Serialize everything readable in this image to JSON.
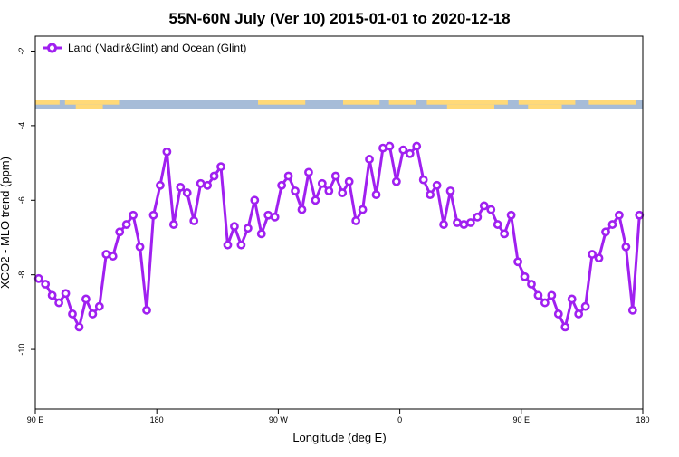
{
  "chart_data": {
    "type": "line",
    "title": "55N-60N July (Ver 10)   2015-01-01 to 2020-12-18",
    "xlabel": "Longitude (deg E)",
    "ylabel": "XCO2 - MLO trend (ppm)",
    "x_ticks": [
      {
        "value": 90,
        "label": "90 E"
      },
      {
        "value": 180,
        "label": "180"
      },
      {
        "value": 270,
        "label": "90 W"
      },
      {
        "value": 360,
        "label": "0"
      },
      {
        "value": 450,
        "label": "90 E"
      },
      {
        "value": 540,
        "label": "180"
      }
    ],
    "y_ticks": [
      {
        "value": -2,
        "label": "-2"
      },
      {
        "value": -4,
        "label": "-4"
      },
      {
        "value": -6,
        "label": "-6"
      },
      {
        "value": -8,
        "label": "-8"
      },
      {
        "value": -10,
        "label": "-10"
      }
    ],
    "xlim": [
      90,
      540
    ],
    "ylim": [
      -11.6,
      -1.6
    ],
    "grid": false,
    "legend_position": "top-left",
    "land_band": {
      "y_range": [
        -3.55,
        -3.3
      ],
      "land_color": "#ffd978",
      "ocean_color": "#a6bcd8"
    },
    "series": [
      {
        "name": "Land (Nadir&Glint) and Ocean (Glint)",
        "color": "#a020f0",
        "x": [
          92.5,
          97.5,
          102.5,
          107.5,
          112.5,
          117.5,
          122.5,
          127.5,
          132.5,
          137.5,
          142.5,
          147.5,
          152.5,
          157.5,
          162.5,
          167.5,
          172.5,
          177.5,
          182.5,
          187.5,
          192.5,
          197.5,
          202.5,
          207.5,
          212.5,
          217.5,
          222.5,
          227.5,
          232.5,
          237.5,
          242.5,
          247.5,
          252.5,
          257.5,
          262.5,
          267.5,
          272.5,
          277.5,
          282.5,
          287.5,
          292.5,
          297.5,
          302.5,
          307.5,
          312.5,
          317.5,
          322.5,
          327.5,
          332.5,
          337.5,
          342.5,
          347.5,
          352.5,
          357.5,
          362.5,
          367.5,
          372.5,
          377.5,
          382.5,
          387.5,
          392.5,
          397.5,
          402.5,
          407.5,
          412.5,
          417.5,
          422.5,
          427.5,
          432.5,
          437.5,
          442.5,
          447.5,
          452.5,
          457.5,
          462.5,
          467.5,
          472.5,
          477.5,
          482.5,
          487.5,
          492.5,
          497.5,
          502.5,
          507.5,
          512.5,
          517.5,
          522.5,
          527.5,
          532.5,
          537.5
        ],
        "y": [
          -8.1,
          -8.25,
          -8.55,
          -8.75,
          -8.5,
          -9.05,
          -9.4,
          -8.65,
          -9.05,
          -8.85,
          -7.45,
          -7.5,
          -6.85,
          -6.65,
          -6.4,
          -7.25,
          -8.95,
          -6.4,
          -5.6,
          -4.7,
          -6.65,
          -5.65,
          -5.8,
          -6.55,
          -5.55,
          -5.6,
          -5.35,
          -5.1,
          -7.2,
          -6.7,
          -7.2,
          -6.75,
          -6.0,
          -6.9,
          -6.4,
          -6.45,
          -5.6,
          -5.35,
          -5.75,
          -6.25,
          -5.25,
          -6.0,
          -5.55,
          -5.75,
          -5.35,
          -5.8,
          -5.5,
          -6.55,
          -6.25,
          -4.9,
          -5.85,
          -4.6,
          -4.55,
          -5.5,
          -4.65,
          -4.75,
          -4.55,
          -5.45,
          -5.85,
          -5.6,
          -6.65,
          -5.75,
          -6.6,
          -6.65,
          -6.6,
          -6.45,
          -6.15,
          -6.25,
          -6.65,
          -6.9,
          -6.4,
          -7.65,
          -8.05,
          -8.25,
          -8.55,
          -8.75,
          -8.55,
          -9.05,
          -9.4,
          -8.65,
          -9.05,
          -8.85,
          -7.45,
          -7.55,
          -6.85,
          -6.65,
          -6.4,
          -7.25,
          -8.95,
          -6.4
        ]
      }
    ]
  }
}
